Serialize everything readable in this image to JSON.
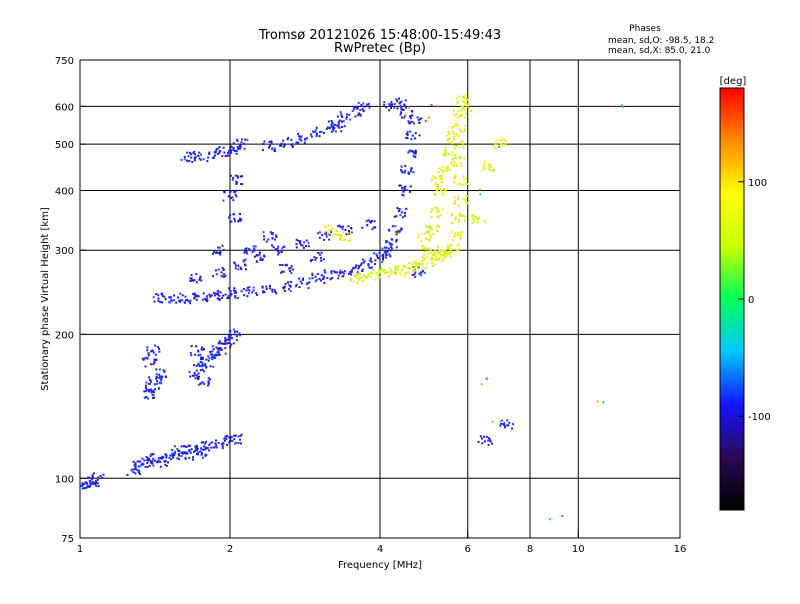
{
  "chart_data": {
    "type": "scatter",
    "title": "Tromsø 20121026 15:48:00-15:49:43",
    "subtitle": "RwPretec (Bp)",
    "xlabel": "Frequency [MHz]",
    "ylabel": "Stationary phase Virtual Height [km]",
    "x_scale": "log",
    "y_scale": "log",
    "xlim": [
      1,
      16
    ],
    "ylim": [
      75,
      750
    ],
    "x_ticks": [
      1,
      2,
      4,
      6,
      8,
      10,
      16
    ],
    "x_tick_labels": [
      "1",
      "2",
      "4",
      "6",
      "8",
      "10",
      "16"
    ],
    "x_gridlines": [
      2,
      4,
      6,
      8,
      10
    ],
    "y_ticks": [
      75,
      100,
      200,
      300,
      400,
      500,
      600,
      750
    ],
    "y_tick_labels": [
      "75",
      "100",
      "200",
      "300",
      "400",
      "500",
      "600",
      "750"
    ],
    "y_gridlines": [
      100,
      200,
      300,
      400,
      500,
      600
    ],
    "grid": true,
    "stats_block": {
      "heading": "Phases",
      "line1": "mean, sd,O: -98.5, 18.2",
      "line2": "mean, sd,X: 85.0, 21.0"
    },
    "colorbar": {
      "label": "[deg]",
      "range": [
        -180,
        180
      ],
      "ticks": [
        100,
        0,
        -100
      ],
      "tick_labels": [
        "100",
        "0",
        "-100"
      ],
      "stops": [
        "#000000",
        "#2a0a57",
        "#1414ff",
        "#00c8ff",
        "#00ff5a",
        "#c8ff00",
        "#ffff00",
        "#ff8c00",
        "#ff0000"
      ]
    },
    "series": [
      {
        "points": [
          [
            1.0,
            96
          ],
          [
            1.03,
            97
          ],
          [
            1.06,
            98
          ],
          [
            1.09,
            100
          ],
          [
            1.28,
            104
          ],
          [
            1.32,
            106
          ],
          [
            1.36,
            108
          ],
          [
            1.4,
            110
          ],
          [
            1.45,
            108
          ],
          [
            1.5,
            110
          ],
          [
            1.55,
            112
          ],
          [
            1.6,
            114
          ],
          [
            1.65,
            112
          ],
          [
            1.7,
            115
          ],
          [
            1.75,
            113
          ],
          [
            1.8,
            117
          ],
          [
            1.9,
            118
          ],
          [
            2.0,
            120
          ],
          [
            2.05,
            121
          ],
          [
            1.37,
            150
          ],
          [
            1.4,
            155
          ],
          [
            1.42,
            160
          ],
          [
            1.45,
            165
          ],
          [
            1.38,
            175
          ],
          [
            1.4,
            185
          ],
          [
            1.7,
            165
          ],
          [
            1.75,
            170
          ],
          [
            1.8,
            175
          ],
          [
            1.85,
            180
          ],
          [
            1.9,
            185
          ],
          [
            1.95,
            190
          ],
          [
            2.0,
            195
          ],
          [
            2.05,
            200
          ],
          [
            1.72,
            185
          ],
          [
            1.78,
            160
          ],
          [
            1.45,
            238
          ],
          [
            1.55,
            238
          ],
          [
            1.65,
            238
          ],
          [
            1.75,
            240
          ],
          [
            1.85,
            240
          ],
          [
            1.95,
            242
          ],
          [
            2.05,
            244
          ],
          [
            2.2,
            246
          ],
          [
            2.4,
            248
          ],
          [
            2.6,
            252
          ],
          [
            2.8,
            256
          ],
          [
            3.0,
            262
          ],
          [
            3.2,
            266
          ],
          [
            3.4,
            270
          ],
          [
            3.6,
            276
          ],
          [
            3.8,
            282
          ],
          [
            4.0,
            290
          ],
          [
            4.1,
            298
          ],
          [
            4.2,
            310
          ],
          [
            4.3,
            330
          ],
          [
            4.4,
            360
          ],
          [
            4.5,
            400
          ],
          [
            4.55,
            440
          ],
          [
            4.6,
            480
          ],
          [
            4.65,
            520
          ],
          [
            4.7,
            560
          ],
          [
            1.7,
            262
          ],
          [
            1.9,
            270
          ],
          [
            2.1,
            280
          ],
          [
            2.3,
            290
          ],
          [
            2.5,
            300
          ],
          [
            2.8,
            310
          ],
          [
            3.1,
            320
          ],
          [
            3.4,
            330
          ],
          [
            3.8,
            340
          ],
          [
            3.0,
            290
          ],
          [
            2.6,
            275
          ],
          [
            2.2,
            300
          ],
          [
            2.4,
            320
          ],
          [
            1.65,
            470
          ],
          [
            1.75,
            472
          ],
          [
            1.85,
            478
          ],
          [
            1.95,
            482
          ],
          [
            2.05,
            486
          ],
          [
            2.4,
            495
          ],
          [
            2.6,
            505
          ],
          [
            2.8,
            515
          ],
          [
            3.0,
            530
          ],
          [
            3.2,
            550
          ],
          [
            3.4,
            570
          ],
          [
            3.6,
            585
          ],
          [
            3.7,
            600
          ],
          [
            3.3,
            540
          ],
          [
            2.1,
            500
          ],
          [
            1.9,
            300
          ],
          [
            2.05,
            350
          ],
          [
            2.0,
            390
          ],
          [
            2.05,
            420
          ],
          [
            4.2,
            600
          ],
          [
            4.4,
            610
          ],
          [
            4.5,
            580
          ],
          [
            4.8,
            270
          ],
          [
            6.5,
            120
          ],
          [
            7.2,
            130
          ]
        ]
      },
      {
        "points": [
          [
            3.6,
            262
          ],
          [
            3.8,
            265
          ],
          [
            4.0,
            268
          ],
          [
            4.2,
            270
          ],
          [
            4.4,
            272
          ],
          [
            4.6,
            276
          ],
          [
            4.8,
            280
          ],
          [
            5.0,
            285
          ],
          [
            5.2,
            290
          ],
          [
            5.4,
            296
          ],
          [
            5.6,
            302
          ],
          [
            5.7,
            320
          ],
          [
            5.75,
            350
          ],
          [
            5.8,
            380
          ],
          [
            5.8,
            420
          ],
          [
            5.75,
            460
          ],
          [
            5.7,
            500
          ],
          [
            5.75,
            540
          ],
          [
            5.8,
            580
          ],
          [
            5.8,
            620
          ],
          [
            5.0,
            300
          ],
          [
            5.1,
            330
          ],
          [
            5.2,
            360
          ],
          [
            5.3,
            400
          ],
          [
            5.4,
            440
          ],
          [
            5.5,
            480
          ],
          [
            5.6,
            520
          ],
          [
            4.9,
            320
          ],
          [
            5.2,
            420
          ],
          [
            5.4,
            300
          ],
          [
            3.2,
            330
          ],
          [
            3.4,
            320
          ],
          [
            5.9,
            600
          ],
          [
            6.3,
            350
          ],
          [
            6.6,
            450
          ],
          [
            7.0,
            500
          ]
        ]
      },
      {
        "points": [
          [
            5.0,
            560
          ],
          [
            5.2,
            600
          ],
          [
            4.6,
            590
          ],
          [
            4.3,
            330
          ],
          [
            6.5,
            400
          ],
          [
            6.8,
            500
          ],
          [
            6.6,
            160
          ],
          [
            6.9,
            130
          ],
          [
            11.0,
            145
          ],
          [
            12.5,
            610
          ],
          [
            9.0,
            84
          ]
        ]
      }
    ]
  }
}
